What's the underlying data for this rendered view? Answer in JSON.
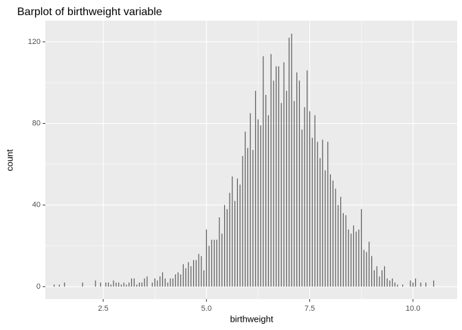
{
  "chart_data": {
    "type": "bar",
    "title": "Barplot of birthweight variable",
    "x_label": "birthweight",
    "y_label": "count",
    "x": [
      1.3125,
      1.4375,
      1.5625,
      2.0,
      2.3125,
      2.4375,
      2.5625,
      2.625,
      2.6875,
      2.75,
      2.8125,
      2.875,
      2.9375,
      3.0,
      3.0625,
      3.125,
      3.1875,
      3.25,
      3.3125,
      3.375,
      3.4375,
      3.5,
      3.5625,
      3.6875,
      3.75,
      3.8125,
      3.875,
      3.9375,
      4.0,
      4.0625,
      4.125,
      4.1875,
      4.25,
      4.3125,
      4.375,
      4.4375,
      4.5,
      4.5625,
      4.625,
      4.6875,
      4.75,
      4.8125,
      4.875,
      4.9375,
      5.0,
      5.0625,
      5.125,
      5.1875,
      5.25,
      5.3125,
      5.375,
      5.4375,
      5.5,
      5.5625,
      5.625,
      5.6875,
      5.75,
      5.8125,
      5.875,
      5.9375,
      6.0,
      6.0625,
      6.125,
      6.1875,
      6.25,
      6.3125,
      6.375,
      6.4375,
      6.5,
      6.5625,
      6.625,
      6.6875,
      6.75,
      6.8125,
      6.875,
      6.9375,
      7.0,
      7.0625,
      7.125,
      7.1875,
      7.25,
      7.3125,
      7.375,
      7.4375,
      7.5,
      7.5625,
      7.625,
      7.6875,
      7.75,
      7.8125,
      7.875,
      7.9375,
      8.0,
      8.0625,
      8.125,
      8.1875,
      8.25,
      8.3125,
      8.375,
      8.4375,
      8.5,
      8.5625,
      8.625,
      8.6875,
      8.75,
      8.8125,
      8.875,
      8.9375,
      9.0,
      9.0625,
      9.125,
      9.1875,
      9.25,
      9.3125,
      9.375,
      9.4375,
      9.5,
      9.5625,
      9.625,
      9.75,
      9.9375,
      10.0,
      10.0625,
      10.1875,
      10.3125,
      10.5
    ],
    "values": [
      1,
      1,
      2,
      2,
      3,
      2,
      2,
      2,
      1,
      3,
      2,
      2,
      1,
      2,
      1,
      2,
      4,
      4,
      1,
      2,
      2,
      4,
      5,
      2,
      4,
      3,
      5,
      7,
      4,
      2,
      4,
      4,
      6,
      7,
      6,
      11,
      9,
      12,
      10,
      13,
      13,
      16,
      15,
      8,
      28,
      20,
      23,
      23,
      23,
      34,
      26,
      40,
      38,
      46,
      54,
      42,
      53,
      50,
      64,
      76,
      68,
      85,
      67,
      96,
      82,
      79,
      113,
      94,
      84,
      114,
      101,
      108,
      108,
      90,
      110,
      96,
      122,
      124,
      91,
      105,
      101,
      77,
      88,
      106,
      86,
      73,
      84,
      71,
      63,
      72,
      57,
      71,
      55,
      52,
      48,
      40,
      44,
      36,
      35,
      28,
      26,
      30,
      27,
      28,
      38,
      18,
      17,
      22,
      15,
      8,
      10,
      5,
      8,
      10,
      4,
      3,
      4,
      2,
      1,
      1,
      3,
      2,
      4,
      2,
      2,
      3
    ],
    "color": "#595959",
    "xlim": [
      1.1,
      11.07
    ],
    "ylim": [
      -6.1,
      130.4
    ],
    "xticks": [
      2.5,
      {
        "value": 5,
        "label": "5.0"
      },
      7.5,
      {
        "value": 10,
        "label": "10.0"
      }
    ],
    "yticks": [
      0,
      40,
      80,
      120
    ],
    "grid": true
  }
}
